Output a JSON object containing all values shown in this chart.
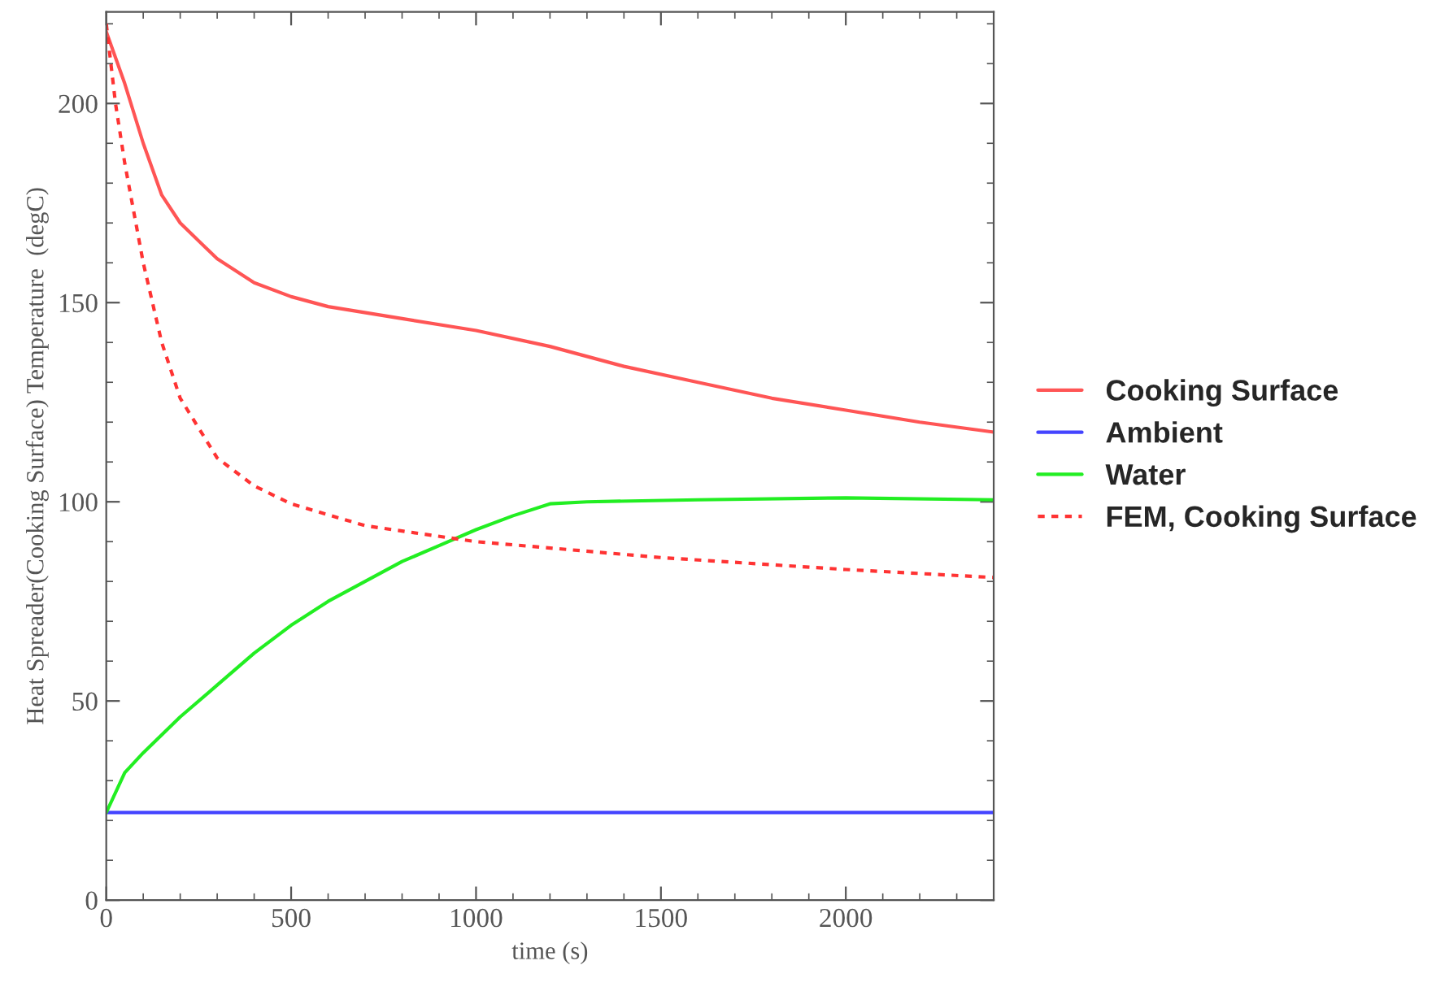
{
  "chart_data": {
    "type": "line",
    "xlabel": "time (s)",
    "ylabel": "Heat Spreader(Cooking Surface) Temperature  (degC)",
    "xlim": [
      0,
      2400
    ],
    "ylim": [
      0,
      223
    ],
    "xticks": [
      0,
      500,
      1000,
      1500,
      2000
    ],
    "yticks": [
      0,
      50,
      100,
      150,
      200
    ],
    "grid": false,
    "legend": "right",
    "series": [
      {
        "name": "Cooking Surface",
        "color": "#ff5555",
        "line_style": "solid",
        "x": [
          0,
          50,
          100,
          150,
          200,
          300,
          400,
          500,
          600,
          800,
          1000,
          1200,
          1400,
          1600,
          1800,
          2000,
          2200,
          2400
        ],
        "values": [
          218,
          205,
          190,
          177,
          170,
          161,
          155,
          151.5,
          149,
          146,
          143,
          139,
          134,
          130,
          126,
          123,
          120,
          117.5
        ]
      },
      {
        "name": "Ambient",
        "color": "#4444ff",
        "line_style": "solid",
        "x": [
          0,
          2400
        ],
        "values": [
          22,
          22
        ]
      },
      {
        "name": "Water",
        "color": "#22ee22",
        "line_style": "solid",
        "x": [
          0,
          50,
          100,
          200,
          300,
          400,
          500,
          600,
          700,
          800,
          900,
          1000,
          1100,
          1200,
          1300,
          1600,
          2000,
          2400
        ],
        "values": [
          22,
          32,
          37,
          46,
          54,
          62,
          69,
          75,
          80,
          85,
          89,
          93,
          96.5,
          99.5,
          100,
          100.5,
          101,
          100.5
        ]
      },
      {
        "name": "FEM, Cooking Surface",
        "color": "#ff3333",
        "line_style": "dashed",
        "x": [
          0,
          25,
          50,
          100,
          150,
          200,
          300,
          400,
          500,
          700,
          1000,
          1500,
          2000,
          2400
        ],
        "values": [
          220,
          200,
          185,
          160,
          140,
          126,
          111,
          104,
          99.5,
          94,
          90,
          86,
          83,
          81
        ]
      }
    ]
  }
}
